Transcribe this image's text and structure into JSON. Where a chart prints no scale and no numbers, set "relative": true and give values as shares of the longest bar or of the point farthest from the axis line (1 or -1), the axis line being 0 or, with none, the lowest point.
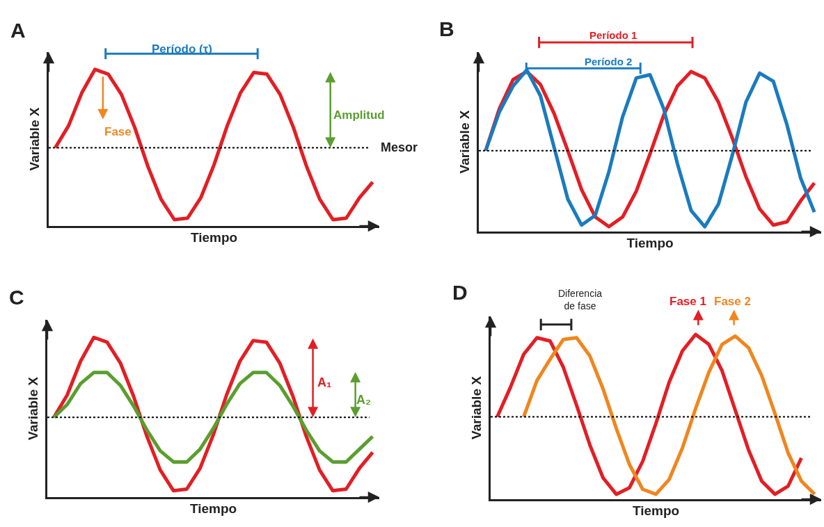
{
  "chart_data": [
    {
      "type": "line",
      "title": "A",
      "xlabel": "Tiempo",
      "ylabel": "Variable X",
      "relative": true,
      "categories": [
        null,
        null,
        null,
        null,
        null,
        null,
        null,
        null,
        null,
        null,
        null,
        null,
        null,
        null,
        null,
        null,
        null,
        null,
        null,
        null,
        null,
        null,
        null,
        null,
        null
      ],
      "series": [
        {
          "color": "#e31e24",
          "values": [
            0.5,
            0.64,
            0.85,
            1.0,
            0.97,
            0.84,
            0.63,
            0.38,
            0.17,
            0.04,
            0.05,
            0.18,
            0.39,
            0.64,
            0.85,
            0.98,
            0.97,
            0.84,
            0.63,
            0.38,
            0.17,
            0.04,
            0.05,
            0.18,
            0.28
          ]
        }
      ],
      "ref_lines": [
        {
          "axis": "y",
          "value": 0.5,
          "label": "Mesor",
          "color": "#000000",
          "line_style": "dotted"
        }
      ],
      "annotations": [
        "Período (τ)",
        "Fase",
        "Amplitud"
      ]
    },
    {
      "type": "line",
      "title": "B",
      "xlabel": "Tiempo",
      "ylabel": "Variable X",
      "relative": true,
      "categories": [
        null,
        null,
        null,
        null,
        null,
        null,
        null,
        null,
        null,
        null,
        null,
        null,
        null,
        null,
        null,
        null,
        null,
        null,
        null,
        null,
        null,
        null,
        null,
        null,
        null
      ],
      "series": [
        {
          "color": "#e31e24",
          "values": [
            0.5,
            0.76,
            0.94,
            0.99,
            0.91,
            0.73,
            0.5,
            0.26,
            0.09,
            0.03,
            0.09,
            0.25,
            0.48,
            0.72,
            0.9,
            0.99,
            0.95,
            0.8,
            0.58,
            0.34,
            0.14,
            0.04,
            0.06,
            0.19,
            0.3
          ]
        },
        {
          "color": "#1a7bbf",
          "values": [
            0.5,
            0.74,
            0.9,
            1.0,
            0.84,
            0.52,
            0.2,
            0.04,
            0.1,
            0.37,
            0.71,
            0.95,
            0.97,
            0.76,
            0.42,
            0.13,
            0.03,
            0.17,
            0.47,
            0.8,
            0.98,
            0.93,
            0.66,
            0.33,
            0.12
          ]
        }
      ],
      "ref_lines": [
        {
          "axis": "y",
          "value": 0.5,
          "label": null,
          "color": "#000000",
          "line_style": "dotted"
        }
      ],
      "annotations": [
        "Período 1",
        "Período 2"
      ]
    },
    {
      "type": "line",
      "title": "C",
      "xlabel": "Tiempo",
      "ylabel": "Variable X",
      "relative": true,
      "categories": [
        null,
        null,
        null,
        null,
        null,
        null,
        null,
        null,
        null,
        null,
        null,
        null,
        null,
        null,
        null,
        null,
        null,
        null,
        null,
        null,
        null,
        null,
        null,
        null,
        null
      ],
      "series": [
        {
          "color": "#e31e24",
          "values": [
            0.5,
            0.64,
            0.85,
            1.0,
            0.97,
            0.84,
            0.63,
            0.38,
            0.17,
            0.04,
            0.05,
            0.18,
            0.39,
            0.64,
            0.85,
            0.98,
            0.97,
            0.84,
            0.63,
            0.38,
            0.17,
            0.04,
            0.05,
            0.18,
            0.28
          ]
        },
        {
          "color": "#5a9e2f",
          "values": [
            0.5,
            0.58,
            0.71,
            0.78,
            0.78,
            0.7,
            0.57,
            0.42,
            0.29,
            0.22,
            0.22,
            0.3,
            0.43,
            0.58,
            0.71,
            0.78,
            0.78,
            0.7,
            0.57,
            0.42,
            0.29,
            0.22,
            0.22,
            0.3,
            0.38
          ]
        }
      ],
      "ref_lines": [
        {
          "axis": "y",
          "value": 0.5,
          "label": null,
          "color": "#000000",
          "line_style": "dotted"
        }
      ],
      "annotations": [
        "A₁",
        "A₂"
      ]
    },
    {
      "type": "line",
      "title": "D",
      "xlabel": "Tiempo",
      "ylabel": "Variable X",
      "relative": true,
      "categories": [
        null,
        null,
        null,
        null,
        null,
        null,
        null,
        null,
        null,
        null,
        null,
        null,
        null,
        null,
        null,
        null,
        null,
        null,
        null,
        null,
        null,
        null,
        null,
        null,
        null
      ],
      "series": [
        {
          "color": "#e31e24",
          "values": [
            0.5,
            0.68,
            0.88,
            0.98,
            0.96,
            0.8,
            0.57,
            0.33,
            0.13,
            0.03,
            0.07,
            0.23,
            0.46,
            0.71,
            0.9,
            1.0,
            0.94,
            0.78,
            0.54,
            0.3,
            0.11,
            0.03,
            0.08,
            0.25,
            null
          ]
        },
        {
          "color": "#f0861e",
          "values": [
            null,
            null,
            0.5,
            0.72,
            0.85,
            0.97,
            0.98,
            0.87,
            0.67,
            0.43,
            0.21,
            0.06,
            0.03,
            0.12,
            0.31,
            0.55,
            0.77,
            0.94,
            0.99,
            0.92,
            0.75,
            0.52,
            0.28,
            0.11,
            0.03
          ]
        }
      ],
      "ref_lines": [
        {
          "axis": "y",
          "value": 0.5,
          "label": null,
          "color": "#000000",
          "line_style": "dotted"
        }
      ],
      "annotations": [
        "Diferencia\nde fase",
        "Fase 1",
        "Fase 2"
      ]
    }
  ]
}
